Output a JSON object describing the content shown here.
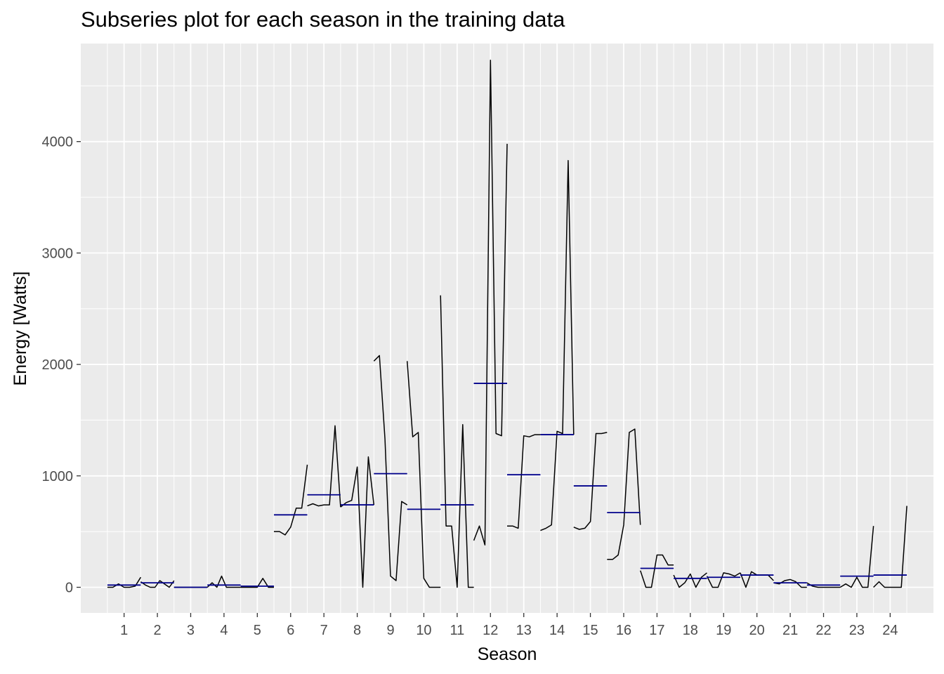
{
  "chart_data": {
    "type": "line",
    "title": "Subseries plot for each season in the training data",
    "xlabel": "Season",
    "ylabel": "Energy [Watts]",
    "y_ticks": [
      0,
      1000,
      2000,
      3000,
      4000
    ],
    "ylim": [
      -230,
      4880
    ],
    "x_ticks": [
      1,
      2,
      3,
      4,
      5,
      6,
      7,
      8,
      9,
      10,
      11,
      12,
      13,
      14,
      15,
      16,
      17,
      18,
      19,
      20,
      21,
      22,
      23,
      24
    ],
    "colors": {
      "series": "#000000",
      "mean": "#00008b",
      "panel": "#ebebeb",
      "grid": "#ffffff"
    },
    "grid": true,
    "subseries": [
      {
        "season": 1,
        "mean": 20,
        "values": [
          0,
          0,
          30,
          0,
          0,
          10,
          90
        ]
      },
      {
        "season": 2,
        "mean": 40,
        "values": [
          50,
          20,
          0,
          0,
          60,
          30,
          0,
          60
        ]
      },
      {
        "season": 3,
        "mean": 0,
        "values": [
          0,
          0,
          0,
          0,
          0,
          0,
          0
        ]
      },
      {
        "season": 4,
        "mean": 20,
        "values": [
          0,
          40,
          0,
          100,
          0,
          0,
          0,
          0
        ]
      },
      {
        "season": 5,
        "mean": 10,
        "values": [
          0,
          0,
          0,
          0,
          80,
          0,
          0
        ]
      },
      {
        "season": 6,
        "mean": 650,
        "values": [
          500,
          500,
          470,
          540,
          710,
          710,
          1100
        ]
      },
      {
        "season": 7,
        "mean": 830,
        "values": [
          730,
          750,
          730,
          740,
          740,
          1450,
          720
        ]
      },
      {
        "season": 8,
        "mean": 740,
        "values": [
          720,
          760,
          780,
          1080,
          0,
          1170,
          740
        ]
      },
      {
        "season": 9,
        "mean": 1020,
        "values": [
          2030,
          2080,
          1330,
          100,
          60,
          770,
          740
        ]
      },
      {
        "season": 10,
        "mean": 700,
        "values": [
          2030,
          1350,
          1390,
          80,
          0,
          0,
          0
        ]
      },
      {
        "season": 11,
        "mean": 740,
        "values": [
          2620,
          550,
          550,
          0,
          1460,
          0,
          0
        ]
      },
      {
        "season": 12,
        "mean": 1830,
        "values": [
          420,
          550,
          380,
          4730,
          1380,
          1360,
          3980
        ]
      },
      {
        "season": 13,
        "mean": 1010,
        "values": [
          550,
          550,
          530,
          1360,
          1350,
          1370,
          1370
        ]
      },
      {
        "season": 14,
        "mean": 1370,
        "values": [
          510,
          530,
          560,
          1400,
          1380,
          3830,
          1370
        ]
      },
      {
        "season": 15,
        "mean": 910,
        "values": [
          540,
          520,
          530,
          590,
          1380,
          1380,
          1390
        ]
      },
      {
        "season": 16,
        "mean": 670,
        "values": [
          250,
          250,
          290,
          560,
          1390,
          1420,
          560
        ]
      },
      {
        "season": 17,
        "mean": 170,
        "values": [
          150,
          0,
          0,
          290,
          290,
          200,
          200
        ]
      },
      {
        "season": 18,
        "mean": 80,
        "values": [
          110,
          0,
          40,
          120,
          0,
          90,
          130
        ]
      },
      {
        "season": 19,
        "mean": 90,
        "values": [
          100,
          0,
          0,
          130,
          120,
          100,
          130
        ]
      },
      {
        "season": 20,
        "mean": 110,
        "values": [
          130,
          0,
          140,
          110,
          110,
          110,
          60
        ]
      },
      {
        "season": 21,
        "mean": 40,
        "values": [
          40,
          30,
          60,
          70,
          50,
          0,
          0
        ]
      },
      {
        "season": 22,
        "mean": 20,
        "values": [
          40,
          10,
          0,
          0,
          0,
          0,
          0
        ]
      },
      {
        "season": 23,
        "mean": 100,
        "values": [
          0,
          30,
          0,
          90,
          0,
          0,
          550
        ]
      },
      {
        "season": 24,
        "mean": 110,
        "values": [
          0,
          50,
          0,
          0,
          0,
          0,
          730
        ]
      }
    ]
  }
}
